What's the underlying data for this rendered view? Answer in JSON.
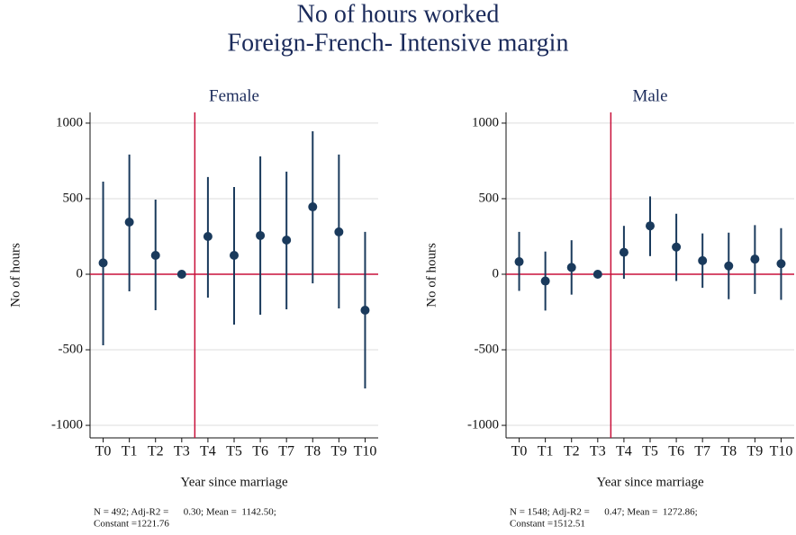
{
  "title": [
    "No of hours worked",
    "Foreign-French- Intensive margin"
  ],
  "chart_data": [
    {
      "type": "errorbar",
      "title": "Female",
      "x_label": "Year since marriage",
      "y_label": "No of hours",
      "categories": [
        "T0",
        "T1",
        "T2",
        "T3",
        "T4",
        "T5",
        "T6",
        "T7",
        "T8",
        "T9",
        "T10"
      ],
      "values": [
        75,
        345,
        125,
        0,
        250,
        125,
        256,
        226,
        446,
        280,
        -238
      ],
      "lower": [
        -470,
        -113,
        -238,
        0,
        -155,
        -333,
        -268,
        -232,
        -60,
        -226,
        -756
      ],
      "upper": [
        613,
        792,
        494,
        0,
        643,
        577,
        780,
        679,
        946,
        792,
        280
      ],
      "ylim": [
        -1083,
        1071
      ],
      "yticks": [
        -1000,
        -500,
        0,
        500,
        1000
      ],
      "grid": true,
      "hline": 0,
      "vline": 3.5,
      "color": "#1a3a5c",
      "ref_color": "#c8103a",
      "note": [
        "N = 492; Adj-R2 =      0.30; Mean =  1142.50;",
        "Constant =1221.76"
      ]
    },
    {
      "type": "errorbar",
      "title": "Male",
      "x_label": "Year since marriage",
      "y_label": "No of hours",
      "categories": [
        "T0",
        "T1",
        "T2",
        "T3",
        "T4",
        "T5",
        "T6",
        "T7",
        "T8",
        "T9",
        "T10"
      ],
      "values": [
        83,
        -45,
        45,
        0,
        145,
        320,
        180,
        90,
        55,
        100,
        70
      ],
      "lower": [
        -110,
        -240,
        -135,
        0,
        -30,
        120,
        -45,
        -90,
        -165,
        -130,
        -170
      ],
      "upper": [
        280,
        150,
        225,
        0,
        320,
        515,
        400,
        270,
        275,
        325,
        305
      ],
      "ylim": [
        -1083,
        1071
      ],
      "yticks": [
        -1000,
        -500,
        0,
        500,
        1000
      ],
      "grid": true,
      "hline": 0,
      "vline": 3.5,
      "color": "#1a3a5c",
      "ref_color": "#c8103a",
      "note": [
        "N = 1548; Adj-R2 =      0.47; Mean =  1272.86;",
        "Constant =1512.51"
      ]
    }
  ]
}
